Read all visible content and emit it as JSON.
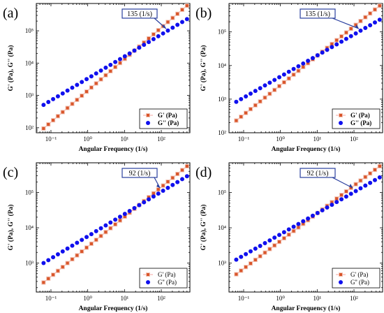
{
  "chart_data": [
    {
      "panel": "(a)",
      "type": "scatter",
      "xlabel": "Angular Frequency (1/s)",
      "ylabel": "G' (Pa), G'' (Pa)",
      "xscale": "log",
      "yscale": "log",
      "xlim": [
        0.04,
        600
      ],
      "ylim": [
        70,
        700000
      ],
      "xticks": [
        0.1,
        1,
        10,
        100
      ],
      "xtick_labels": [
        "10⁻¹",
        "10⁰",
        "10¹",
        "10²"
      ],
      "yticks": [
        100,
        1000,
        10000,
        100000
      ],
      "ytick_labels": [
        "10²",
        "10³",
        "10⁴",
        "10⁵"
      ],
      "crossover_label": "135 (1/s)",
      "crossover": 135,
      "legend": {
        "position": "bottom-right",
        "bold": true
      },
      "series": [
        {
          "name": "G' (Pa)",
          "marker": "square",
          "color": "#d9562b",
          "x0": 0.063,
          "x1": 500,
          "y0": 95,
          "y1": 600000
        },
        {
          "name": "G'' (Pa)",
          "marker": "circle",
          "color": "#1010ee",
          "x0": 0.063,
          "x1": 500,
          "y0": 510,
          "y1": 230000
        }
      ]
    },
    {
      "panel": "(b)",
      "type": "scatter",
      "xlabel": "Angular Frequency (1/s)",
      "ylabel": "G' (Pa), G'' (Pa)",
      "xscale": "log",
      "yscale": "log",
      "xlim": [
        0.04,
        600
      ],
      "ylim": [
        100,
        700000
      ],
      "xticks": [
        0.1,
        1,
        10,
        100
      ],
      "xtick_labels": [
        "10⁻¹",
        "10⁰",
        "10¹",
        "10²"
      ],
      "yticks": [
        100,
        1000,
        10000,
        100000
      ],
      "ytick_labels": [
        "10²",
        "10³",
        "10⁴",
        "10⁵"
      ],
      "crossover_label": "135 (1/s)",
      "crossover": 135,
      "legend": {
        "position": "bottom-right",
        "bold": true
      },
      "series": [
        {
          "name": "G' (Pa)",
          "marker": "square",
          "color": "#d9562b",
          "x0": 0.063,
          "x1": 500,
          "y0": 230,
          "y1": 600000
        },
        {
          "name": "G'' (Pa)",
          "marker": "circle",
          "color": "#1010ee",
          "x0": 0.063,
          "x1": 500,
          "y0": 830,
          "y1": 230000
        }
      ]
    },
    {
      "panel": "(c)",
      "type": "scatter",
      "xlabel": "Angular Frequency (1/s)",
      "ylabel": "G' (Pa), G'' (Pa)",
      "xscale": "log",
      "yscale": "log",
      "xlim": [
        0.04,
        600
      ],
      "ylim": [
        150,
        700000
      ],
      "xticks": [
        0.1,
        1,
        10,
        100
      ],
      "xtick_labels": [
        "10⁻¹",
        "10⁰",
        "10¹",
        "10²"
      ],
      "yticks": [
        1000,
        10000,
        100000
      ],
      "ytick_labels": [
        "10³",
        "10⁴",
        "10⁵"
      ],
      "crossover_label": "92 (1/s)",
      "crossover": 92,
      "legend": {
        "position": "bottom-right",
        "bold": false
      },
      "series": [
        {
          "name": "G' (Pa)",
          "marker": "square",
          "color": "#d9562b",
          "x0": 0.063,
          "x1": 500,
          "y0": 280,
          "y1": 560000
        },
        {
          "name": "G'' (Pa)",
          "marker": "circle",
          "color": "#1010ee",
          "x0": 0.063,
          "x1": 500,
          "y0": 1000,
          "y1": 290000
        }
      ]
    },
    {
      "panel": "(d)",
      "type": "scatter",
      "xlabel": "Angular Frequency (1/s)",
      "ylabel": "G' (Pa), G'' (Pa)",
      "xscale": "log",
      "yscale": "log",
      "xlim": [
        0.04,
        600
      ],
      "ylim": [
        150,
        700000
      ],
      "xticks": [
        0.1,
        1,
        10,
        100
      ],
      "xtick_labels": [
        "10⁻¹",
        "10⁰",
        "10¹",
        "10²"
      ],
      "yticks": [
        1000,
        10000,
        100000
      ],
      "ytick_labels": [
        "10³",
        "10⁴",
        "10⁵"
      ],
      "crossover_label": "92 (1/s)",
      "crossover": 92,
      "legend": {
        "position": "bottom-right",
        "bold": false
      },
      "series": [
        {
          "name": "G' (Pa)",
          "marker": "square",
          "color": "#d9562b",
          "x0": 0.063,
          "x1": 500,
          "y0": 480,
          "y1": 560000
        },
        {
          "name": "G'' (Pa)",
          "marker": "circle",
          "color": "#1010ee",
          "x0": 0.063,
          "x1": 500,
          "y0": 1250,
          "y1": 270000
        }
      ]
    }
  ]
}
